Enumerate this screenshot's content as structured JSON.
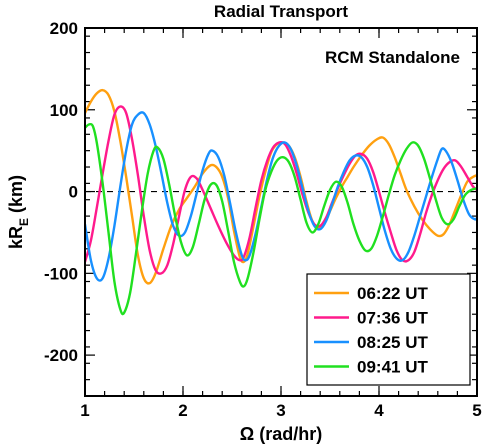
{
  "chart_data": {
    "type": "line",
    "title": "Radial Transport",
    "annotation": "RCM Standalone",
    "xlabel": "Ω (rad/hr)",
    "ylabel_main": "kR",
    "ylabel_sub": "E",
    "ylabel_unit": " (km)",
    "xlim": [
      1,
      5
    ],
    "ylim": [
      -250,
      200
    ],
    "xticks": [
      1,
      2,
      3,
      4,
      5
    ],
    "yticks": [
      200,
      100,
      0,
      -100,
      -200
    ],
    "x_minor_step": 0.2,
    "y_minor_step": 20,
    "zero_line": "dashed",
    "legend_position": "bottom-right",
    "series": [
      {
        "name": "06:22 UT",
        "color": "#ffa010",
        "points": [
          [
            1.0,
            96
          ],
          [
            1.06,
            110
          ],
          [
            1.12,
            120
          ],
          [
            1.18,
            124
          ],
          [
            1.24,
            118
          ],
          [
            1.3,
            98
          ],
          [
            1.36,
            62
          ],
          [
            1.42,
            18
          ],
          [
            1.48,
            -30
          ],
          [
            1.54,
            -78
          ],
          [
            1.6,
            -106
          ],
          [
            1.66,
            -112
          ],
          [
            1.72,
            -100
          ],
          [
            1.8,
            -70
          ],
          [
            1.88,
            -42
          ],
          [
            1.96,
            -22
          ],
          [
            2.04,
            -8
          ],
          [
            2.12,
            6
          ],
          [
            2.2,
            22
          ],
          [
            2.28,
            32
          ],
          [
            2.34,
            30
          ],
          [
            2.4,
            18
          ],
          [
            2.46,
            -8
          ],
          [
            2.52,
            -48
          ],
          [
            2.58,
            -80
          ],
          [
            2.62,
            -86
          ],
          [
            2.66,
            -76
          ],
          [
            2.72,
            -42
          ],
          [
            2.78,
            -6
          ],
          [
            2.84,
            24
          ],
          [
            2.9,
            48
          ],
          [
            2.96,
            58
          ],
          [
            3.02,
            60
          ],
          [
            3.08,
            56
          ],
          [
            3.14,
            42
          ],
          [
            3.2,
            18
          ],
          [
            3.26,
            -12
          ],
          [
            3.32,
            -36
          ],
          [
            3.38,
            -44
          ],
          [
            3.44,
            -40
          ],
          [
            3.5,
            -24
          ],
          [
            3.56,
            -8
          ],
          [
            3.62,
            6
          ],
          [
            3.68,
            18
          ],
          [
            3.74,
            30
          ],
          [
            3.82,
            44
          ],
          [
            3.9,
            56
          ],
          [
            3.98,
            64
          ],
          [
            4.04,
            66
          ],
          [
            4.1,
            58
          ],
          [
            4.16,
            42
          ],
          [
            4.22,
            22
          ],
          [
            4.28,
            2
          ],
          [
            4.36,
            -18
          ],
          [
            4.44,
            -34
          ],
          [
            4.52,
            -46
          ],
          [
            4.6,
            -54
          ],
          [
            4.66,
            -52
          ],
          [
            4.72,
            -40
          ],
          [
            4.78,
            -22
          ],
          [
            4.84,
            -4
          ],
          [
            4.9,
            12
          ],
          [
            4.96,
            18
          ],
          [
            5.0,
            20
          ]
        ]
      },
      {
        "name": "07:36 UT",
        "color": "#ff1a8c",
        "points": [
          [
            1.0,
            -86
          ],
          [
            1.06,
            -60
          ],
          [
            1.12,
            -20
          ],
          [
            1.18,
            22
          ],
          [
            1.24,
            62
          ],
          [
            1.3,
            94
          ],
          [
            1.36,
            104
          ],
          [
            1.42,
            96
          ],
          [
            1.48,
            64
          ],
          [
            1.54,
            20
          ],
          [
            1.6,
            -30
          ],
          [
            1.66,
            -72
          ],
          [
            1.72,
            -96
          ],
          [
            1.78,
            -100
          ],
          [
            1.84,
            -90
          ],
          [
            1.9,
            -64
          ],
          [
            1.96,
            -30
          ],
          [
            2.02,
            2
          ],
          [
            2.08,
            18
          ],
          [
            2.14,
            16
          ],
          [
            2.2,
            2
          ],
          [
            2.28,
            -20
          ],
          [
            2.36,
            -42
          ],
          [
            2.44,
            -62
          ],
          [
            2.52,
            -78
          ],
          [
            2.58,
            -84
          ],
          [
            2.62,
            -80
          ],
          [
            2.68,
            -56
          ],
          [
            2.74,
            -20
          ],
          [
            2.8,
            14
          ],
          [
            2.86,
            38
          ],
          [
            2.92,
            54
          ],
          [
            2.98,
            60
          ],
          [
            3.04,
            58
          ],
          [
            3.1,
            44
          ],
          [
            3.16,
            22
          ],
          [
            3.22,
            -4
          ],
          [
            3.28,
            -26
          ],
          [
            3.34,
            -40
          ],
          [
            3.4,
            -42
          ],
          [
            3.46,
            -32
          ],
          [
            3.52,
            -14
          ],
          [
            3.58,
            4
          ],
          [
            3.64,
            20
          ],
          [
            3.7,
            34
          ],
          [
            3.76,
            44
          ],
          [
            3.82,
            46
          ],
          [
            3.88,
            40
          ],
          [
            3.94,
            24
          ],
          [
            4.0,
            0
          ],
          [
            4.06,
            -26
          ],
          [
            4.12,
            -50
          ],
          [
            4.18,
            -72
          ],
          [
            4.24,
            -84
          ],
          [
            4.3,
            -84
          ],
          [
            4.36,
            -74
          ],
          [
            4.42,
            -52
          ],
          [
            4.48,
            -26
          ],
          [
            4.54,
            -4
          ],
          [
            4.6,
            14
          ],
          [
            4.66,
            28
          ],
          [
            4.72,
            36
          ],
          [
            4.78,
            38
          ],
          [
            4.84,
            30
          ],
          [
            4.9,
            18
          ],
          [
            4.96,
            6
          ],
          [
            5.0,
            2
          ]
        ]
      },
      {
        "name": "08:25 UT",
        "color": "#1890ff",
        "points": [
          [
            1.0,
            -40
          ],
          [
            1.06,
            -84
          ],
          [
            1.12,
            -106
          ],
          [
            1.18,
            -106
          ],
          [
            1.24,
            -82
          ],
          [
            1.3,
            -42
          ],
          [
            1.36,
            6
          ],
          [
            1.42,
            50
          ],
          [
            1.48,
            82
          ],
          [
            1.54,
            94
          ],
          [
            1.6,
            96
          ],
          [
            1.66,
            82
          ],
          [
            1.72,
            56
          ],
          [
            1.78,
            22
          ],
          [
            1.84,
            -14
          ],
          [
            1.9,
            -42
          ],
          [
            1.96,
            -54
          ],
          [
            2.02,
            -50
          ],
          [
            2.08,
            -30
          ],
          [
            2.14,
            -2
          ],
          [
            2.2,
            26
          ],
          [
            2.26,
            46
          ],
          [
            2.3,
            50
          ],
          [
            2.36,
            42
          ],
          [
            2.42,
            20
          ],
          [
            2.48,
            -14
          ],
          [
            2.54,
            -50
          ],
          [
            2.6,
            -78
          ],
          [
            2.64,
            -84
          ],
          [
            2.68,
            -78
          ],
          [
            2.74,
            -52
          ],
          [
            2.8,
            -18
          ],
          [
            2.86,
            16
          ],
          [
            2.92,
            42
          ],
          [
            2.98,
            56
          ],
          [
            3.04,
            60
          ],
          [
            3.1,
            52
          ],
          [
            3.16,
            32
          ],
          [
            3.22,
            4
          ],
          [
            3.28,
            -24
          ],
          [
            3.34,
            -42
          ],
          [
            3.4,
            -46
          ],
          [
            3.46,
            -36
          ],
          [
            3.52,
            -16
          ],
          [
            3.58,
            6
          ],
          [
            3.64,
            24
          ],
          [
            3.7,
            38
          ],
          [
            3.76,
            44
          ],
          [
            3.82,
            42
          ],
          [
            3.88,
            30
          ],
          [
            3.94,
            8
          ],
          [
            4.0,
            -20
          ],
          [
            4.06,
            -48
          ],
          [
            4.12,
            -70
          ],
          [
            4.18,
            -82
          ],
          [
            4.24,
            -84
          ],
          [
            4.3,
            -74
          ],
          [
            4.36,
            -54
          ],
          [
            4.42,
            -30
          ],
          [
            4.48,
            -6
          ],
          [
            4.54,
            18
          ],
          [
            4.6,
            40
          ],
          [
            4.64,
            52
          ],
          [
            4.68,
            50
          ],
          [
            4.74,
            36
          ],
          [
            4.8,
            14
          ],
          [
            4.86,
            -10
          ],
          [
            4.92,
            -28
          ],
          [
            4.98,
            -34
          ],
          [
            5.0,
            -32
          ]
        ]
      },
      {
        "name": "09:41 UT",
        "color": "#20e020",
        "points": [
          [
            1.0,
            78
          ],
          [
            1.04,
            82
          ],
          [
            1.08,
            80
          ],
          [
            1.12,
            60
          ],
          [
            1.18,
            10
          ],
          [
            1.24,
            -50
          ],
          [
            1.3,
            -110
          ],
          [
            1.36,
            -144
          ],
          [
            1.4,
            -148
          ],
          [
            1.46,
            -124
          ],
          [
            1.52,
            -76
          ],
          [
            1.58,
            -24
          ],
          [
            1.64,
            22
          ],
          [
            1.7,
            50
          ],
          [
            1.74,
            54
          ],
          [
            1.8,
            40
          ],
          [
            1.86,
            8
          ],
          [
            1.92,
            -30
          ],
          [
            1.98,
            -62
          ],
          [
            2.04,
            -78
          ],
          [
            2.1,
            -68
          ],
          [
            2.16,
            -40
          ],
          [
            2.22,
            -10
          ],
          [
            2.28,
            8
          ],
          [
            2.34,
            8
          ],
          [
            2.4,
            -12
          ],
          [
            2.46,
            -48
          ],
          [
            2.52,
            -86
          ],
          [
            2.58,
            -110
          ],
          [
            2.62,
            -116
          ],
          [
            2.66,
            -106
          ],
          [
            2.72,
            -74
          ],
          [
            2.78,
            -34
          ],
          [
            2.84,
            2
          ],
          [
            2.9,
            24
          ],
          [
            2.96,
            38
          ],
          [
            3.02,
            42
          ],
          [
            3.08,
            36
          ],
          [
            3.14,
            18
          ],
          [
            3.2,
            -10
          ],
          [
            3.26,
            -38
          ],
          [
            3.32,
            -50
          ],
          [
            3.38,
            -40
          ],
          [
            3.44,
            -18
          ],
          [
            3.5,
            2
          ],
          [
            3.56,
            12
          ],
          [
            3.62,
            6
          ],
          [
            3.68,
            -14
          ],
          [
            3.74,
            -40
          ],
          [
            3.8,
            -60
          ],
          [
            3.86,
            -72
          ],
          [
            3.92,
            -70
          ],
          [
            3.98,
            -54
          ],
          [
            4.04,
            -30
          ],
          [
            4.1,
            -4
          ],
          [
            4.16,
            20
          ],
          [
            4.22,
            38
          ],
          [
            4.28,
            52
          ],
          [
            4.34,
            60
          ],
          [
            4.4,
            56
          ],
          [
            4.46,
            40
          ],
          [
            4.52,
            16
          ],
          [
            4.58,
            -10
          ],
          [
            4.64,
            -32
          ],
          [
            4.7,
            -40
          ],
          [
            4.76,
            -34
          ],
          [
            4.82,
            -18
          ],
          [
            4.88,
            -4
          ],
          [
            4.94,
            2
          ],
          [
            5.0,
            4
          ]
        ]
      }
    ]
  }
}
